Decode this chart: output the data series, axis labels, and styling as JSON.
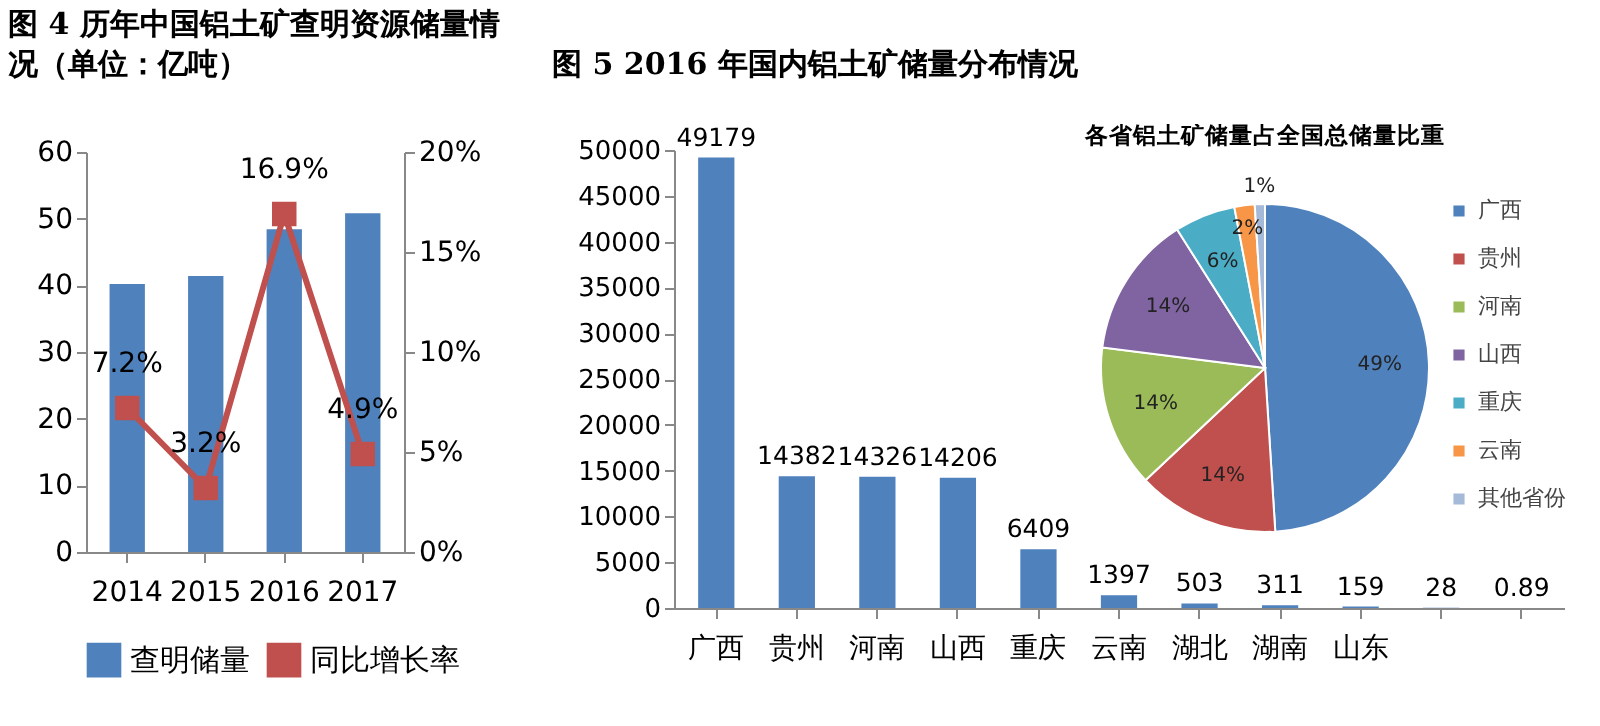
{
  "chart_data": [
    {
      "type": "bar",
      "title": "图 4 历年中国铝土矿查明资源储量情况（单位：亿吨）",
      "categories": [
        "2014",
        "2015",
        "2016",
        "2017"
      ],
      "series": [
        {
          "name": "查明储量",
          "type": "bar",
          "color": "#4f81bd",
          "values": [
            40.2,
            41.4,
            48.4,
            50.8
          ]
        },
        {
          "name": "同比增长率",
          "type": "line",
          "axis": "y2",
          "color": "#c0504d",
          "values": [
            7.2,
            3.2,
            16.9,
            4.9
          ],
          "value_labels": [
            "7.2%",
            "3.2%",
            "16.9%",
            "4.9%"
          ]
        }
      ],
      "ylim": [
        0,
        60
      ],
      "yticks": [
        0,
        10,
        20,
        30,
        40,
        50,
        60
      ],
      "y2lim": [
        0,
        20
      ],
      "y2ticks": [
        {
          "value": 0,
          "label": "0%"
        },
        {
          "value": 5,
          "label": "5%"
        },
        {
          "value": 10,
          "label": "10%"
        },
        {
          "value": 15,
          "label": "15%"
        },
        {
          "value": 20,
          "label": "20%"
        }
      ],
      "marker": "square",
      "legend": "bottom",
      "grid": false
    },
    {
      "type": "bar",
      "title": "图 5 2016 年国内铝土矿储量分布情况",
      "categories": [
        "广西",
        "贵州",
        "河南",
        "山西",
        "重庆",
        "云南",
        "湖北",
        "湖南",
        "山东",
        null,
        null
      ],
      "values": [
        49179,
        14382,
        14326,
        14206,
        6409,
        1397,
        503,
        311,
        159,
        28,
        0.89
      ],
      "color": "#4f81bd",
      "ylim": [
        0,
        50000
      ],
      "yticks": [
        0,
        5000,
        10000,
        15000,
        20000,
        25000,
        30000,
        35000,
        40000,
        45000,
        50000
      ],
      "data_labels": true,
      "grid": false
    },
    {
      "type": "pie",
      "title": "各省铝土矿储量占全国总储量比重",
      "categories": [
        "广西",
        "贵州",
        "河南",
        "山西",
        "重庆",
        "云南",
        "其他省份"
      ],
      "values": [
        49,
        14,
        14,
        14,
        6,
        2,
        1
      ],
      "value_labels": [
        "49%",
        "14%",
        "14%",
        "14%",
        "6%",
        "2%",
        "1%"
      ],
      "colors": [
        "#4f81bd",
        "#c0504d",
        "#9bbb59",
        "#8064a2",
        "#4bacc6",
        "#f79646",
        "#a5b9d9"
      ],
      "legend": "right"
    }
  ]
}
